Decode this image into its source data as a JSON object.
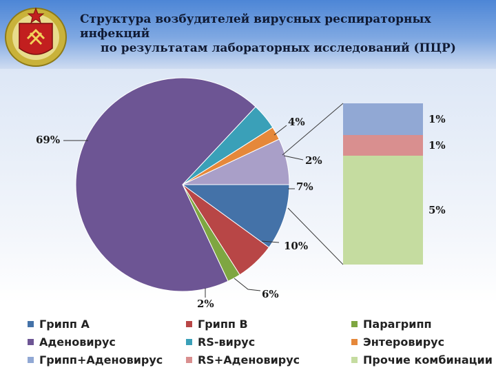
{
  "title_lines": [
    "Структура возбудителей вирусных респираторных инфекций",
    "по результатам лабораторных исследований (ПЦР)"
  ],
  "emblem": {
    "icon": "military-emblem-icon"
  },
  "chart_data": {
    "type": "bar-of-pie",
    "pie": [
      {
        "name": "Грипп А",
        "label": "10%",
        "value": 10,
        "color": "#4472a8"
      },
      {
        "name": "Грипп В",
        "label": "6%",
        "value": 6,
        "color": "#b84646"
      },
      {
        "name": "Парагрипп",
        "label": "2%",
        "value": 2,
        "color": "#7ea641"
      },
      {
        "name": "Аденовирус",
        "label": "69%",
        "value": 69,
        "color": "#6d5594"
      },
      {
        "name": "RS-вирус",
        "label": "4%",
        "value": 4,
        "color": "#3aa0b8"
      },
      {
        "name": "Энтеровирус",
        "label": "2%",
        "value": 2,
        "color": "#e5883a"
      },
      {
        "name": "Прочие комбинации",
        "label": "7%",
        "value": 7,
        "color": "#a99fc8"
      }
    ],
    "bar": [
      {
        "name": "Грипп+Аденовирус",
        "label": "1%",
        "value": 1,
        "color": "#91a8d4"
      },
      {
        "name": "RS+Аденовирус",
        "label": "1%",
        "value": 1,
        "color": "#d98f8f"
      },
      {
        "name": "Прочие комбинации",
        "label": "5%",
        "value": 5,
        "color": "#c5dca0"
      }
    ],
    "legend": [
      {
        "name": "Грипп А",
        "color": "#4472a8"
      },
      {
        "name": "Грипп В",
        "color": "#b84646"
      },
      {
        "name": "Парагрипп",
        "color": "#7ea641"
      },
      {
        "name": "Аденовирус",
        "color": "#6d5594"
      },
      {
        "name": "RS-вирус",
        "color": "#3aa0b8"
      },
      {
        "name": "Энтеровирус",
        "color": "#e5883a"
      },
      {
        "name": "Грипп+Аденовирус",
        "color": "#91a8d4"
      },
      {
        "name": "RS+Аденовирус",
        "color": "#d98f8f"
      },
      {
        "name": "Прочие комбинации",
        "color": "#c5dca0"
      }
    ]
  }
}
